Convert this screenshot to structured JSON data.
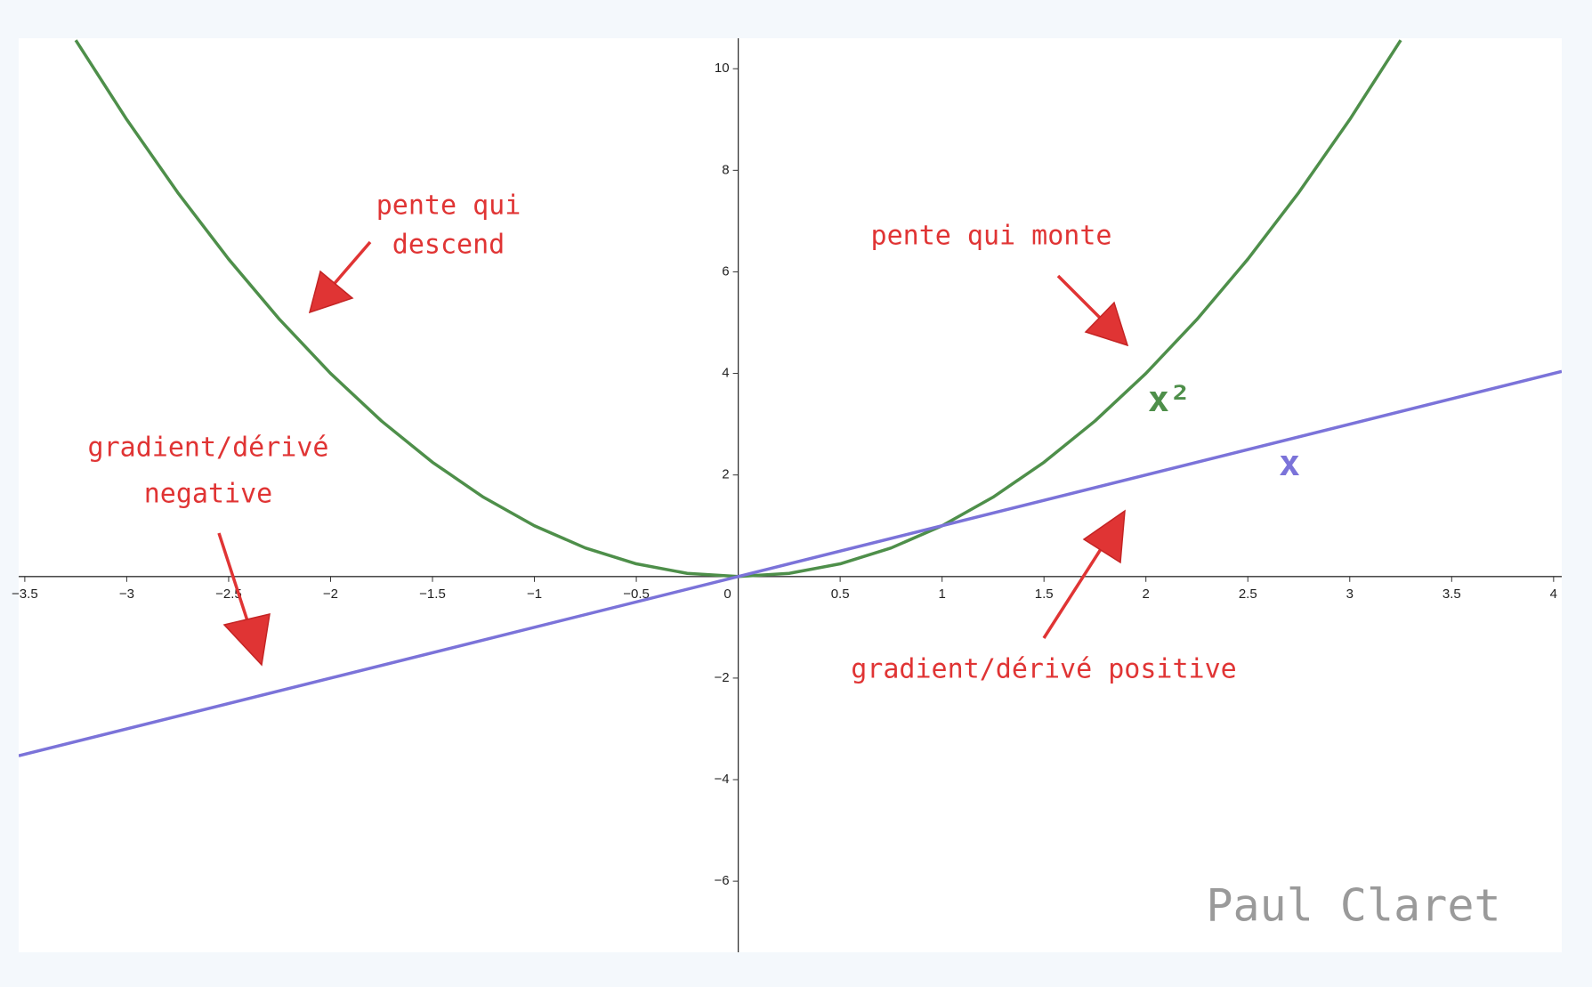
{
  "chart_data": {
    "type": "line",
    "xlim": [
      -3.53,
      4.04
    ],
    "ylim": [
      -7.4,
      10.6
    ],
    "xticks": [
      {
        "value": -3.5,
        "label": "−3.5"
      },
      {
        "value": -3,
        "label": "−3"
      },
      {
        "value": -2.5,
        "label": "−2.5"
      },
      {
        "value": -2,
        "label": "−2"
      },
      {
        "value": -1.5,
        "label": "−1.5"
      },
      {
        "value": -1,
        "label": "−1"
      },
      {
        "value": -0.5,
        "label": "−0.5"
      },
      0,
      0.5,
      1,
      1.5,
      2,
      2.5,
      3,
      3.5,
      4
    ],
    "yticks": [
      {
        "value": -6,
        "label": "−6"
      },
      {
        "value": -4,
        "label": "−4"
      },
      {
        "value": -2,
        "label": "−2"
      },
      2,
      4,
      6,
      8,
      10
    ],
    "series": [
      {
        "name": "x²",
        "color": "#4e8f4a",
        "x": [
          -3.25,
          -3,
          -2.75,
          -2.5,
          -2.25,
          -2,
          -1.75,
          -1.5,
          -1.25,
          -1,
          -0.75,
          -0.5,
          -0.25,
          0,
          0.25,
          0.5,
          0.75,
          1,
          1.25,
          1.5,
          1.75,
          2,
          2.25,
          2.5,
          2.75,
          3,
          3.25
        ],
        "values": [
          10.5625,
          9,
          7.5625,
          6.25,
          5.0625,
          4,
          3.0625,
          2.25,
          1.5625,
          1,
          0.5625,
          0.25,
          0.0625,
          0,
          0.0625,
          0.25,
          0.5625,
          1,
          1.5625,
          2.25,
          3.0625,
          4,
          5.0625,
          6.25,
          7.5625,
          9,
          10.5625
        ]
      },
      {
        "name": "x",
        "color": "#7b73d9",
        "x": [
          -3.53,
          4.04
        ],
        "values": [
          -3.53,
          4.04
        ]
      }
    ],
    "annotations": [
      "pente qui",
      "descend",
      "pente qui monte",
      "gradient/dérivé",
      "negative",
      "gradient/dérivé positive"
    ],
    "watermark": "Paul Claret"
  }
}
